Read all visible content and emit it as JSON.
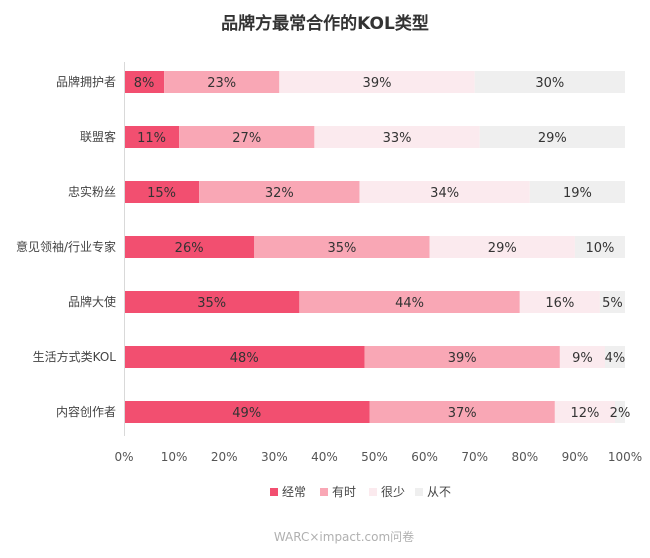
{
  "chart_data": {
    "type": "bar",
    "orientation": "horizontal",
    "stacked": true,
    "title": "品牌方最常合作的KOL类型",
    "categories": [
      "品牌拥护者",
      "联盟客",
      "忠实粉丝",
      "意见领袖/行业专家",
      "品牌大使",
      "生活方式类KOL",
      "内容创作者"
    ],
    "series": [
      {
        "name": "经常",
        "color": "#F24F70",
        "values": [
          8,
          11,
          15,
          26,
          35,
          48,
          49
        ]
      },
      {
        "name": "有时",
        "color": "#F9A7B5",
        "values": [
          23,
          27,
          32,
          35,
          44,
          39,
          37
        ]
      },
      {
        "name": "很少",
        "color": "#FBEAEE",
        "values": [
          39,
          33,
          34,
          29,
          16,
          9,
          12
        ]
      },
      {
        "name": "从不",
        "color": "#EFEFEF",
        "values": [
          30,
          29,
          19,
          10,
          5,
          4,
          2
        ]
      }
    ],
    "xlim": [
      0,
      100
    ],
    "xticks": [
      0,
      10,
      20,
      30,
      40,
      50,
      60,
      70,
      80,
      90,
      100
    ],
    "tick_suffix": "%",
    "value_suffix": "%",
    "legend_position": "bottom",
    "grid": false
  },
  "source": "WARC×impact.com问卷"
}
